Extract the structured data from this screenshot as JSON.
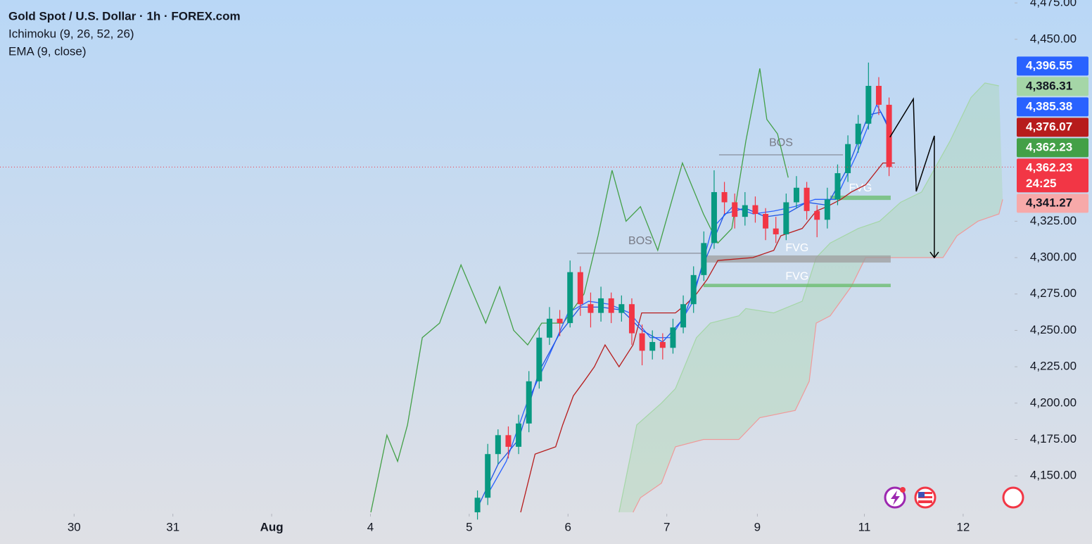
{
  "chart_data": {
    "type": "candlestick",
    "title": "Gold Spot / U.S. Dollar · 1h · FOREX.com",
    "indicators": [
      "Ichimoku (9, 26, 52, 26)",
      "EMA (9, close)"
    ],
    "up_color": "#089981",
    "down_color": "#f23645",
    "xlim": [
      0,
      246.5
    ],
    "ylim": [
      4124,
      4477
    ],
    "xticks": [
      {
        "value": 18,
        "label": "30"
      },
      {
        "value": 42,
        "label": "31"
      },
      {
        "value": 66,
        "label": "Aug"
      },
      {
        "value": 90,
        "label": "4"
      },
      {
        "value": 114,
        "label": "5"
      },
      {
        "value": 138,
        "label": "6"
      },
      {
        "value": 162,
        "label": "7"
      },
      {
        "value": 184,
        "label": "9"
      },
      {
        "value": 210,
        "label": "11"
      },
      {
        "value": 234,
        "label": "12"
      }
    ],
    "yticks": [
      {
        "value": 4150,
        "label": "4,150.00"
      },
      {
        "value": 4175,
        "label": "4,175.00"
      },
      {
        "value": 4200,
        "label": "4,200.00"
      },
      {
        "value": 4225,
        "label": "4,225.00"
      },
      {
        "value": 4250,
        "label": "4,250.00"
      },
      {
        "value": 4275,
        "label": "4,275.00"
      },
      {
        "value": 4300,
        "label": "4,300.00"
      },
      {
        "value": 4325,
        "label": "4,325.00"
      },
      {
        "value": 4450,
        "label": "4,450.00"
      },
      {
        "value": 4475,
        "label": "4,475.00"
      }
    ],
    "x": [
      116,
      118.5,
      121,
      123.5,
      126,
      128.5,
      131,
      133.5,
      136,
      138.5,
      141,
      143.5,
      146,
      148.5,
      151,
      153.5,
      156,
      158.5,
      161,
      163.5,
      166,
      168.5,
      171,
      173.5,
      176,
      178.5,
      181,
      183.5,
      186,
      188.5,
      191,
      193.5,
      196,
      198.5,
      201,
      203.5,
      206,
      208.5,
      211,
      213.5,
      216
    ],
    "ohlc": [
      [
        4125,
        4140,
        4120,
        4135
      ],
      [
        4135,
        4172,
        4130,
        4165
      ],
      [
        4165,
        4182,
        4158,
        4178
      ],
      [
        4178,
        4184,
        4162,
        4170
      ],
      [
        4170,
        4192,
        4165,
        4186
      ],
      [
        4186,
        4222,
        4180,
        4215
      ],
      [
        4215,
        4252,
        4210,
        4245
      ],
      [
        4245,
        4266,
        4240,
        4258
      ],
      [
        4258,
        4264,
        4246,
        4255
      ],
      [
        4255,
        4298,
        4252,
        4290
      ],
      [
        4290,
        4294,
        4260,
        4268
      ],
      [
        4268,
        4276,
        4252,
        4262
      ],
      [
        4262,
        4280,
        4256,
        4272
      ],
      [
        4272,
        4276,
        4255,
        4262
      ],
      [
        4262,
        4274,
        4256,
        4268
      ],
      [
        4268,
        4272,
        4240,
        4248
      ],
      [
        4248,
        4254,
        4226,
        4236
      ],
      [
        4236,
        4250,
        4230,
        4242
      ],
      [
        4242,
        4248,
        4230,
        4238
      ],
      [
        4238,
        4258,
        4234,
        4252
      ],
      [
        4252,
        4274,
        4248,
        4268
      ],
      [
        4268,
        4294,
        4262,
        4288
      ],
      [
        4288,
        4318,
        4284,
        4310
      ],
      [
        4310,
        4360,
        4306,
        4345
      ],
      [
        4345,
        4352,
        4330,
        4338
      ],
      [
        4338,
        4344,
        4320,
        4328
      ],
      [
        4328,
        4345,
        4322,
        4336
      ],
      [
        4336,
        4342,
        4324,
        4330
      ],
      [
        4330,
        4334,
        4312,
        4320
      ],
      [
        4320,
        4328,
        4310,
        4316
      ],
      [
        4316,
        4344,
        4312,
        4338
      ],
      [
        4338,
        4356,
        4334,
        4348
      ],
      [
        4348,
        4352,
        4326,
        4332
      ],
      [
        4332,
        4336,
        4314,
        4326
      ],
      [
        4326,
        4348,
        4320,
        4340
      ],
      [
        4340,
        4364,
        4336,
        4358
      ],
      [
        4358,
        4384,
        4352,
        4378
      ],
      [
        4378,
        4398,
        4372,
        4392
      ],
      [
        4392,
        4434,
        4388,
        4418
      ],
      [
        4418,
        4424,
        4398,
        4405
      ],
      [
        4405,
        4410,
        4356,
        4362.23
      ]
    ],
    "cloud": {
      "fill": "#a5d6a7",
      "upper": {
        "color": "#a5d6a7",
        "x": [
          150.4,
          154.7,
          160.7,
          164.1,
          169.2,
          172.6,
          179.5,
          181.2,
          188,
          194.9,
          198.3,
          201.7,
          208.5,
          213.7,
          218.8,
          223.9,
          230.8,
          235.9,
          239.3,
          242.7
        ],
        "values": [
          4125,
          4185,
          4200,
          4210,
          4245,
          4255,
          4260,
          4265,
          4262,
          4270,
          4300,
          4310,
          4320,
          4325,
          4338,
          4345,
          4380,
          4410,
          4420,
          4418
        ]
      },
      "lower": {
        "color": "#ef9a9a",
        "x": [
          153.8,
          155.6,
          160.7,
          164.1,
          170.9,
          179.5,
          184.6,
          193.2,
          196.6,
          198.3,
          201.7,
          206.8,
          210.3,
          229.1,
          232.5,
          237.6,
          242.7,
          243.6
        ],
        "values": [
          4125,
          4135,
          4145,
          4170,
          4175,
          4175,
          4190,
          4195,
          4215,
          4255,
          4260,
          4280,
          4300,
          4300,
          4315,
          4325,
          4330,
          4340
        ]
      }
    },
    "lines": [
      {
        "color": "#43a047",
        "x": [
          90.1,
          94,
          96.6,
          99,
          102.6,
          106.8,
          112,
          118,
          121.4,
          124.8,
          128.2,
          131.6,
          136.8,
          141.9,
          145.3,
          148.7,
          152.1,
          155.6,
          159.8,
          165.8,
          170.9,
          174.4,
          177.8,
          181.2,
          184.6,
          186.3,
          188.9,
          191.5
        ],
        "values": [
          4125,
          4178,
          4160,
          4185,
          4245,
          4255,
          4295,
          4255,
          4280,
          4250,
          4240,
          4255,
          4255,
          4275,
          4315,
          4360,
          4325,
          4335,
          4305,
          4365,
          4330,
          4310,
          4320,
          4380,
          4430,
          4395,
          4385,
          4355
        ]
      },
      {
        "color": "#b71c1c",
        "x": [
          126.5,
          130,
          135,
          136.7,
          139.3,
          141.9,
          144.4,
          147,
          150.4,
          153.8,
          155.9,
          164.1,
          166.7,
          169.2,
          171.8,
          174.4,
          182.9,
          188,
          189.7,
          194.9,
          198.3,
          200.9,
          204.3,
          206.8,
          210.3,
          214.5,
          217.4
        ],
        "values": [
          4125,
          4165,
          4170,
          4185,
          4205,
          4215,
          4225,
          4240,
          4225,
          4240,
          4262,
          4262,
          4268,
          4275,
          4285,
          4298,
          4300,
          4305,
          4315,
          4320,
          4332,
          4335,
          4340,
          4345,
          4350,
          4365,
          4365
        ]
      },
      {
        "color": "#2962ff",
        "x": [
          118,
          123,
          128,
          133,
          138,
          143,
          148,
          153,
          158,
          163,
          168,
          173,
          178,
          183,
          188,
          193,
          198,
          203,
          208,
          213,
          216
        ],
        "values": [
          4135,
          4160,
          4200,
          4230,
          4262,
          4270,
          4268,
          4262,
          4245,
          4245,
          4268,
          4320,
          4335,
          4330,
          4332,
          4335,
          4340,
          4340,
          4370,
          4405,
          4390
        ]
      },
      {
        "color": "#1e53e5",
        "x": [
          116,
          121,
          126,
          131,
          136,
          141,
          146,
          151,
          156,
          161,
          166,
          171,
          176,
          181,
          186,
          191,
          196,
          201,
          206,
          211,
          214,
          216
        ],
        "values": [
          4128,
          4158,
          4175,
          4222,
          4248,
          4266,
          4266,
          4264,
          4250,
          4242,
          4258,
          4296,
          4330,
          4334,
          4328,
          4330,
          4338,
          4336,
          4362,
          4398,
          4400,
          4388
        ]
      }
    ],
    "bos": [
      {
        "text": "BOS",
        "value": 4303,
        "x": [
          140.2,
          170.9
        ]
      },
      {
        "text": "BOS",
        "value": 4370.6,
        "x": [
          174.7,
          204.8
        ]
      }
    ],
    "fvg": [
      {
        "text": "FVG",
        "y": [
          4339.6,
          4342.6
        ],
        "x": [
          201.7,
          216.4
        ],
        "color": "#66bb6a"
      },
      {
        "text": "FVG",
        "y": [
          4296.6,
          4301.5
        ],
        "x": [
          170.9,
          216.4
        ],
        "color": "#9e9e9e"
      },
      {
        "text": "FVG",
        "y": [
          4279.7,
          4282
        ],
        "x": [
          170.9,
          216.4
        ],
        "color": "#66bb6a"
      }
    ],
    "projection": {
      "color": "#000000",
      "x": [
        216.2,
        221.9,
        222.6,
        227,
        227
      ],
      "values": [
        4382.7,
        4409,
        4345.5,
        4383.7,
        4300
      ]
    },
    "price_tags": [
      {
        "value": 4396.55,
        "label": "4,396.55",
        "color": "#2962ff",
        "text_color": "#ffffff"
      },
      {
        "value": 4386.31,
        "label": "4,386.31",
        "color": "#a5d6a7",
        "text_color": "#131722"
      },
      {
        "value": 4385.38,
        "label": "4,385.38",
        "color": "#2962ff",
        "text_color": "#ffffff"
      },
      {
        "value": 4376.07,
        "label": "4,376.07",
        "color": "#b71c1c",
        "text_color": "#ffffff"
      },
      {
        "value": 4362.23,
        "label": "4,362.23",
        "color": "#43a047",
        "text_color": "#ffffff"
      },
      {
        "value": 4362.23,
        "label": "4,362.23",
        "color": "#f23645",
        "text_color": "#ffffff",
        "countdown": "24:25"
      },
      {
        "value": 4341.27,
        "label": "4,341.27",
        "color": "#f7a9a9",
        "text_color": "#131722"
      }
    ]
  }
}
